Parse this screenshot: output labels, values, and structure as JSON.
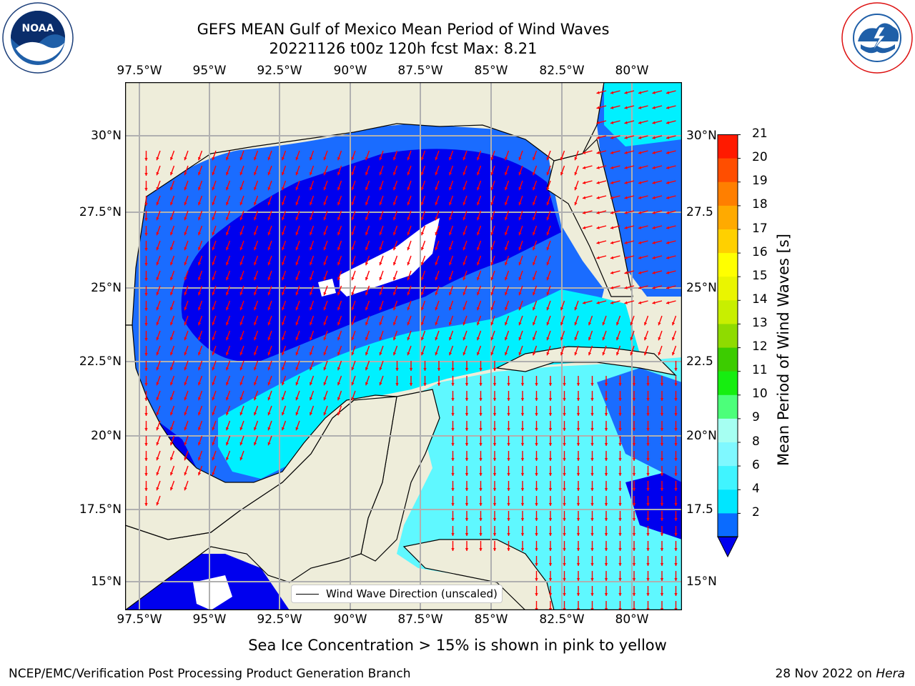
{
  "title": {
    "line1": "GEFS MEAN Gulf of Mexico Mean Period of Wind Waves",
    "line2": "20221126 t00z 120h fcst   Max: 8.21"
  },
  "axes": {
    "lon_labels": [
      "97.5°W",
      "95°W",
      "92.5°W",
      "90°W",
      "87.5°W",
      "85°W",
      "82.5°W",
      "80°W"
    ],
    "lat_labels_left": [
      "30°N",
      "27.5°N",
      "25°N",
      "22.5°N",
      "20°N",
      "17.5°N",
      "15°N"
    ],
    "lat_labels_right": [
      "30°N",
      "27.5",
      "25°N",
      "22.5",
      "20°N",
      "17.5",
      "15°N"
    ]
  },
  "legend": {
    "label": "Wind Wave Direction (unscaled)"
  },
  "colorbar": {
    "title": "Mean Period of Wind Waves [s]",
    "ticks": [
      "2",
      "4",
      "6",
      "8",
      "9",
      "10",
      "11",
      "12",
      "13",
      "14",
      "15",
      "16",
      "17",
      "18",
      "19",
      "20",
      "21"
    ],
    "colors": [
      "#0a6bff",
      "#00e6ff",
      "#40f4ff",
      "#7ff8ff",
      "#a6fff2",
      "#4cff7a",
      "#16ee10",
      "#3ccc00",
      "#8fdb00",
      "#c8ef00",
      "#eaf500",
      "#ffff00",
      "#ffd000",
      "#ffaa00",
      "#ff7f00",
      "#ff4e00",
      "#ff1a00",
      "#f00000"
    ],
    "under_color": "#0000ee"
  },
  "subtitle": "Sea Ice Concentration > 15% is shown in pink to yellow",
  "footer": {
    "left": "NCEP/EMC/Verification Post Processing Product Generation Branch",
    "right_date": "28 Nov 2022 on",
    "right_host": "Hera"
  },
  "logos": {
    "noaa_text": "NOAA",
    "noaa_ring": "NATIONAL OCEANIC AND ATMOSPHERIC ADMINISTRATION · U.S. DEPARTMENT OF COMMERCE",
    "nws_ring": "NATIONAL WEATHER SERVICE"
  },
  "colors": {
    "land": "#eeedda",
    "deep": "#0000ee",
    "mid": "#1a6cff",
    "light": "#00f0ff",
    "pale": "#5ff8ff",
    "arrow": "#ff0000",
    "grid": "#b0b0b0"
  }
}
